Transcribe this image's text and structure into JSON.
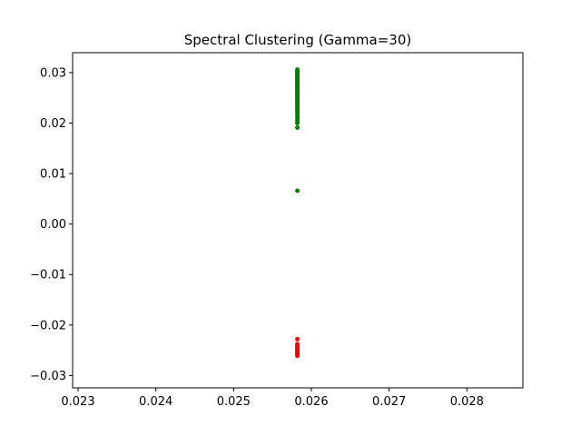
{
  "chart_data": {
    "type": "scatter",
    "title": "Spectral Clustering (Gamma=30)",
    "xlabel": "",
    "ylabel": "",
    "xlim": [
      0.02293,
      0.02872
    ],
    "ylim": [
      -0.03245,
      0.03395
    ],
    "xticks": [
      0.023,
      0.024,
      0.025,
      0.026,
      0.027,
      0.028
    ],
    "xtick_labels": [
      "0.023",
      "0.024",
      "0.025",
      "0.026",
      "0.027",
      "0.028"
    ],
    "yticks": [
      -0.03,
      -0.02,
      -0.01,
      0.0,
      0.01,
      0.02,
      0.03
    ],
    "ytick_labels": [
      "−0.03",
      "−0.02",
      "−0.01",
      "0.00",
      "0.01",
      "0.02",
      "0.03"
    ],
    "grid": false,
    "series": [
      {
        "color": "#008000",
        "points": [
          [
            0.02582,
            0.0306
          ],
          [
            0.02582,
            0.0304
          ],
          [
            0.02582,
            0.0302
          ],
          [
            0.02582,
            0.03
          ],
          [
            0.02582,
            0.0298
          ],
          [
            0.02582,
            0.0296
          ],
          [
            0.02582,
            0.0294
          ],
          [
            0.02582,
            0.0292
          ],
          [
            0.02582,
            0.029
          ],
          [
            0.02582,
            0.0288
          ],
          [
            0.02582,
            0.0286
          ],
          [
            0.02582,
            0.0284
          ],
          [
            0.02582,
            0.0282
          ],
          [
            0.02582,
            0.028
          ],
          [
            0.02582,
            0.0278
          ],
          [
            0.02582,
            0.0276
          ],
          [
            0.02582,
            0.0273
          ],
          [
            0.02582,
            0.027
          ],
          [
            0.02582,
            0.0267
          ],
          [
            0.02582,
            0.0264
          ],
          [
            0.02582,
            0.0261
          ],
          [
            0.02582,
            0.0258
          ],
          [
            0.02582,
            0.0255
          ],
          [
            0.02582,
            0.0252
          ],
          [
            0.02582,
            0.0249
          ],
          [
            0.02582,
            0.0246
          ],
          [
            0.02582,
            0.0243
          ],
          [
            0.02582,
            0.024
          ],
          [
            0.02582,
            0.0236
          ],
          [
            0.02582,
            0.0232
          ],
          [
            0.02582,
            0.0228
          ],
          [
            0.02582,
            0.0224
          ],
          [
            0.02582,
            0.022
          ],
          [
            0.02582,
            0.0215
          ],
          [
            0.02582,
            0.021
          ],
          [
            0.02582,
            0.0205
          ],
          [
            0.02582,
            0.02
          ],
          [
            0.02582,
            0.0191
          ],
          [
            0.02582,
            0.0066
          ]
        ]
      },
      {
        "color": "#ff0000",
        "points": [
          [
            0.02582,
            -0.0228
          ],
          [
            0.02582,
            -0.0238
          ],
          [
            0.02582,
            -0.0242
          ],
          [
            0.02582,
            -0.0245
          ],
          [
            0.02582,
            -0.0248
          ],
          [
            0.02582,
            -0.0251
          ],
          [
            0.02582,
            -0.0253
          ],
          [
            0.02582,
            -0.0255
          ],
          [
            0.02582,
            -0.0257
          ],
          [
            0.02582,
            -0.0259
          ],
          [
            0.02582,
            -0.0261
          ]
        ]
      }
    ]
  }
}
